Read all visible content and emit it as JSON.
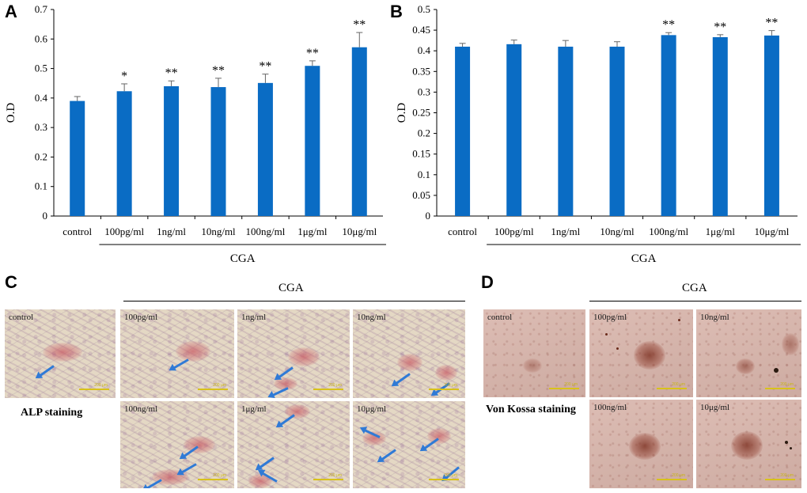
{
  "panels": {
    "a": "A",
    "b": "B",
    "c": "C",
    "d": "D"
  },
  "colors": {
    "bar": "#0a6cc4",
    "arrow": "#2f7ad6"
  },
  "chart_data": [
    {
      "type": "bar",
      "panel": "A",
      "ylabel": "O.D",
      "group_label": "CGA",
      "categories": [
        "control",
        "100pg/ml",
        "1ng/ml",
        "10ng/ml",
        "100ng/ml",
        "1μg/ml",
        "10μg/ml"
      ],
      "values": [
        0.39,
        0.423,
        0.44,
        0.437,
        0.451,
        0.509,
        0.572
      ],
      "errors": [
        0.015,
        0.025,
        0.018,
        0.03,
        0.03,
        0.017,
        0.05
      ],
      "significance": [
        "",
        "*",
        "**",
        "**",
        "**",
        "**",
        "**"
      ],
      "ylim": [
        0,
        0.7
      ],
      "yticks": [
        "0",
        "0.1",
        "0.2",
        "0.3",
        "0.4",
        "0.5",
        "0.6",
        "0.7"
      ]
    },
    {
      "type": "bar",
      "panel": "B",
      "ylabel": "O.D",
      "group_label": "CGA",
      "categories": [
        "control",
        "100pg/ml",
        "1ng/ml",
        "10ng/ml",
        "100ng/ml",
        "1μg/ml",
        "10μg/ml"
      ],
      "values": [
        0.41,
        0.416,
        0.41,
        0.41,
        0.438,
        0.433,
        0.437
      ],
      "errors": [
        0.008,
        0.01,
        0.015,
        0.012,
        0.006,
        0.006,
        0.012
      ],
      "significance": [
        "",
        "",
        "",
        "",
        "**",
        "**",
        "**"
      ],
      "ylim": [
        0,
        0.5
      ],
      "yticks": [
        "0",
        "0.05",
        "0.1",
        "0.15",
        "0.2",
        "0.25",
        "0.3",
        "0.35",
        "0.4",
        "0.45",
        "0.5"
      ]
    }
  ],
  "micrographs": {
    "c": {
      "group_label": "CGA",
      "side_label": "ALP staining",
      "images": [
        {
          "label": "control"
        },
        {
          "label": "100pg/ml"
        },
        {
          "label": "1ng/ml"
        },
        {
          "label": "10ng/ml"
        },
        {
          "label": "100ng/ml"
        },
        {
          "label": "1μg/ml"
        },
        {
          "label": "10μg/ml"
        }
      ]
    },
    "d": {
      "group_label": "CGA",
      "side_label": "Von Kossa staining",
      "images": [
        {
          "label": "control"
        },
        {
          "label": "100pg/ml"
        },
        {
          "label": "10ng/ml"
        },
        {
          "label": "100ng/ml"
        },
        {
          "label": "10μg/ml"
        }
      ]
    }
  }
}
